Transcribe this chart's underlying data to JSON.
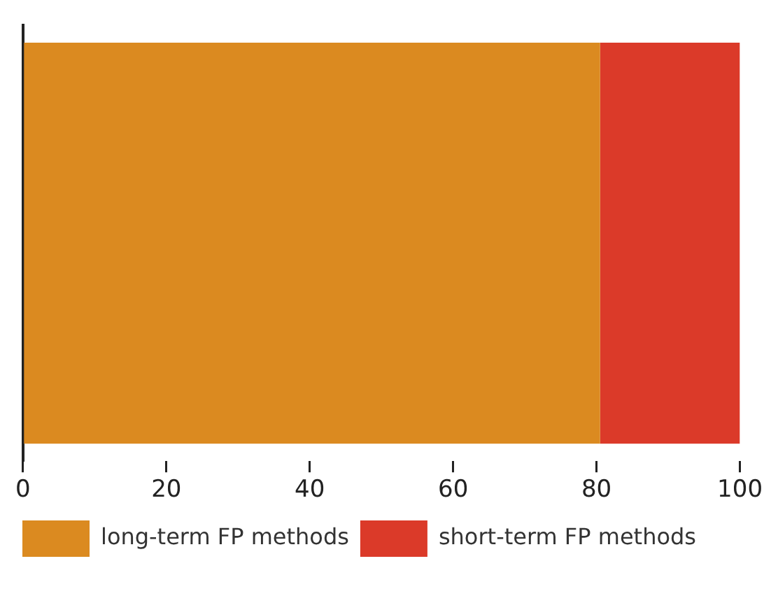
{
  "chart_data": {
    "type": "bar",
    "orientation": "horizontal",
    "stacked": true,
    "categories": [
      null
    ],
    "series": [
      {
        "name": "long-term FP methods",
        "color": "#db8a20",
        "values": [
          80.5
        ]
      },
      {
        "name": "short-term FP methods",
        "color": "#db3a29",
        "values": [
          19.5
        ]
      }
    ],
    "xlim": [
      0,
      100
    ],
    "xticks": [
      0,
      20,
      40,
      60,
      80,
      100
    ],
    "grid": false,
    "legend": "bottom"
  }
}
